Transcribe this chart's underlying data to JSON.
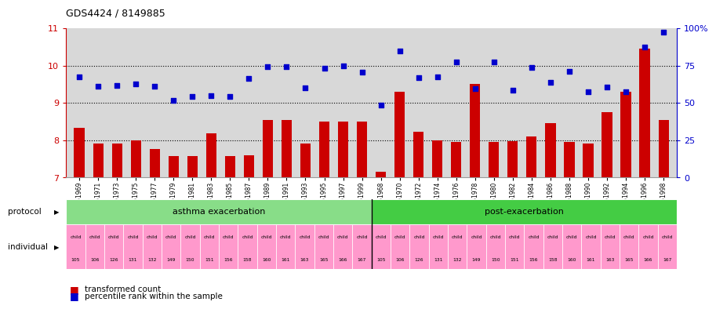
{
  "title": "GDS4424 / 8149885",
  "samples": [
    "GSM751969",
    "GSM751971",
    "GSM751973",
    "GSM751975",
    "GSM751977",
    "GSM751979",
    "GSM751981",
    "GSM751983",
    "GSM751985",
    "GSM751987",
    "GSM751989",
    "GSM751991",
    "GSM751993",
    "GSM751995",
    "GSM751997",
    "GSM751999",
    "GSM751968",
    "GSM751970",
    "GSM751972",
    "GSM751974",
    "GSM751976",
    "GSM751978",
    "GSM751980",
    "GSM751982",
    "GSM751984",
    "GSM751986",
    "GSM751988",
    "GSM751990",
    "GSM751992",
    "GSM751994",
    "GSM751996",
    "GSM751998"
  ],
  "bar_values": [
    8.32,
    7.9,
    7.9,
    8.0,
    7.77,
    7.57,
    7.57,
    8.18,
    7.57,
    7.6,
    8.55,
    8.55,
    7.9,
    8.5,
    8.5,
    8.5,
    7.15,
    9.3,
    8.22,
    8.0,
    7.95,
    9.5,
    7.95,
    7.97,
    8.1,
    8.45,
    7.95,
    7.9,
    8.75,
    9.3,
    10.45,
    8.55
  ],
  "dot_values": [
    9.7,
    9.45,
    9.47,
    9.5,
    9.45,
    9.07,
    9.17,
    9.2,
    9.18,
    9.65,
    9.98,
    9.98,
    9.4,
    9.92,
    10.0,
    9.83,
    8.95,
    10.4,
    9.67,
    9.7,
    10.1,
    9.38,
    10.1,
    9.33,
    9.95,
    9.55,
    9.85,
    9.3,
    9.42,
    9.3,
    10.5,
    10.9
  ],
  "protocol_labels": [
    "asthma exacerbation",
    "post-exacerbation"
  ],
  "protocol_split": 16,
  "individuals_top": [
    "child",
    "child",
    "child",
    "child",
    "child",
    "child",
    "child",
    "child",
    "child",
    "child",
    "child",
    "child",
    "child",
    "child",
    "child",
    "child",
    "child",
    "child",
    "child",
    "child",
    "child",
    "child",
    "child",
    "child",
    "child",
    "child",
    "child",
    "child",
    "child",
    "child",
    "child",
    "child"
  ],
  "individuals_bottom": [
    "105",
    "106",
    "126",
    "131",
    "132",
    "149",
    "150",
    "151",
    "156",
    "158",
    "160",
    "161",
    "163",
    "165",
    "166",
    "167",
    "105",
    "106",
    "126",
    "131",
    "132",
    "149",
    "150",
    "151",
    "156",
    "158",
    "160",
    "161",
    "163",
    "165",
    "166",
    "167"
  ],
  "ylim": [
    7,
    11
  ],
  "yticks_left": [
    7,
    8,
    9,
    10,
    11
  ],
  "yticks_right_pos": [
    7,
    8,
    9,
    10,
    11
  ],
  "yticks_right_labels": [
    "0",
    "25",
    "50",
    "75",
    "100%"
  ],
  "bar_color": "#cc0000",
  "dot_color": "#0000cc",
  "protocol_color_asthma": "#88dd88",
  "protocol_color_post": "#44cc44",
  "individual_color": "#ff99cc",
  "bg_color": "#d8d8d8",
  "legend_red": "transformed count",
  "legend_blue": "percentile rank within the sample"
}
